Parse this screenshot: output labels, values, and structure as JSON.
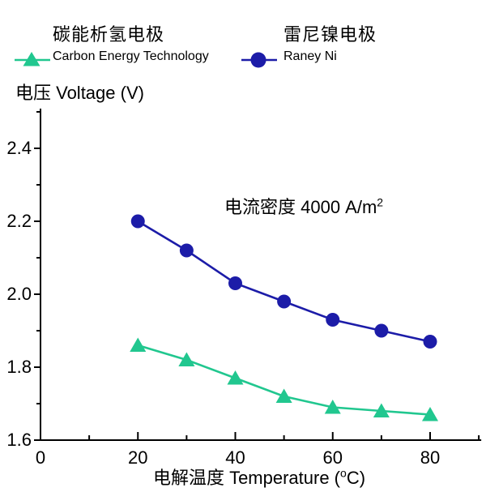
{
  "legend": {
    "items": [
      {
        "label_zh": "碳能析氢电极",
        "label_en": "Carbon Energy Technology",
        "color": "#21C78F",
        "marker": "triangle"
      },
      {
        "label_zh": "雷尼镍电极",
        "label_en": "Raney Ni",
        "color": "#1C1CA8",
        "marker": "circle"
      }
    ]
  },
  "y_axis_title": "电压 Voltage (V)",
  "x_axis_title": {
    "main": "电解温度 Temperature (",
    "sup": "o",
    "end": "C)"
  },
  "annotation": {
    "main": "电流密度 4000 A/m",
    "sup": "2"
  },
  "colors": {
    "axis": "#000000",
    "background": "#ffffff"
  },
  "chart_data": {
    "type": "line",
    "title": "",
    "xlabel": "电解温度 Temperature (°C)",
    "ylabel": "电压 Voltage (V)",
    "annotation": "电流密度 4000 A/m²",
    "x": [
      20,
      30,
      40,
      50,
      60,
      70,
      80
    ],
    "series": [
      {
        "name": "碳能析氢电极 Carbon Energy Technology",
        "color": "#21C78F",
        "marker": "triangle",
        "values": [
          1.86,
          1.82,
          1.77,
          1.72,
          1.69,
          1.68,
          1.67
        ]
      },
      {
        "name": "雷尼镍电极 Raney Ni",
        "color": "#1C1CA8",
        "marker": "circle",
        "values": [
          2.2,
          2.12,
          2.03,
          1.98,
          1.93,
          1.9,
          1.87
        ]
      }
    ],
    "xlim": [
      0,
      90
    ],
    "ylim": [
      1.6,
      2.51
    ],
    "x_major_ticks": [
      0,
      20,
      40,
      60,
      80
    ],
    "x_minor_ticks": [
      10,
      30,
      50,
      70,
      90
    ],
    "y_major_ticks": [
      1.6,
      1.8,
      2.0,
      2.2,
      2.4
    ],
    "y_minor_ticks": [
      1.7,
      1.9,
      2.1,
      2.3,
      2.5
    ],
    "grid": false,
    "legend_position": "top"
  }
}
